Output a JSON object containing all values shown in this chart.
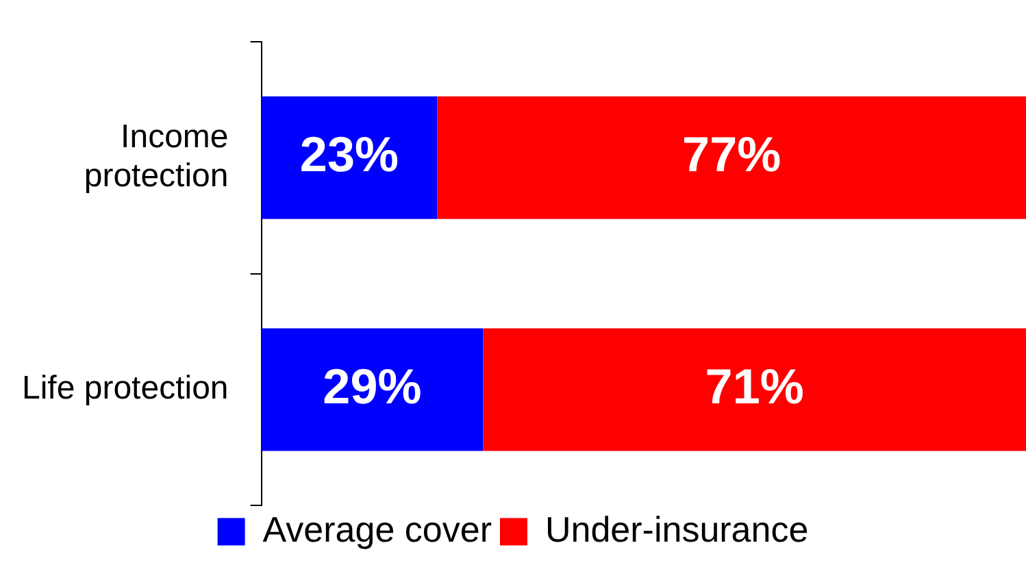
{
  "chart_data": {
    "type": "bar",
    "orientation": "horizontal",
    "stacked": true,
    "categories": [
      "Income\nprotection",
      "Life protection"
    ],
    "series": [
      {
        "name": "Average cover",
        "color": "#0000ff",
        "values": [
          23,
          29
        ],
        "value_labels": [
          "23%",
          "29%"
        ]
      },
      {
        "name": "Under-insurance",
        "color": "#ff0000",
        "values": [
          77,
          71
        ],
        "value_labels": [
          "77%",
          "71%"
        ]
      }
    ],
    "xlim": [
      0,
      100
    ],
    "tick_labels": "y",
    "grid": false,
    "legend": "bottom"
  }
}
